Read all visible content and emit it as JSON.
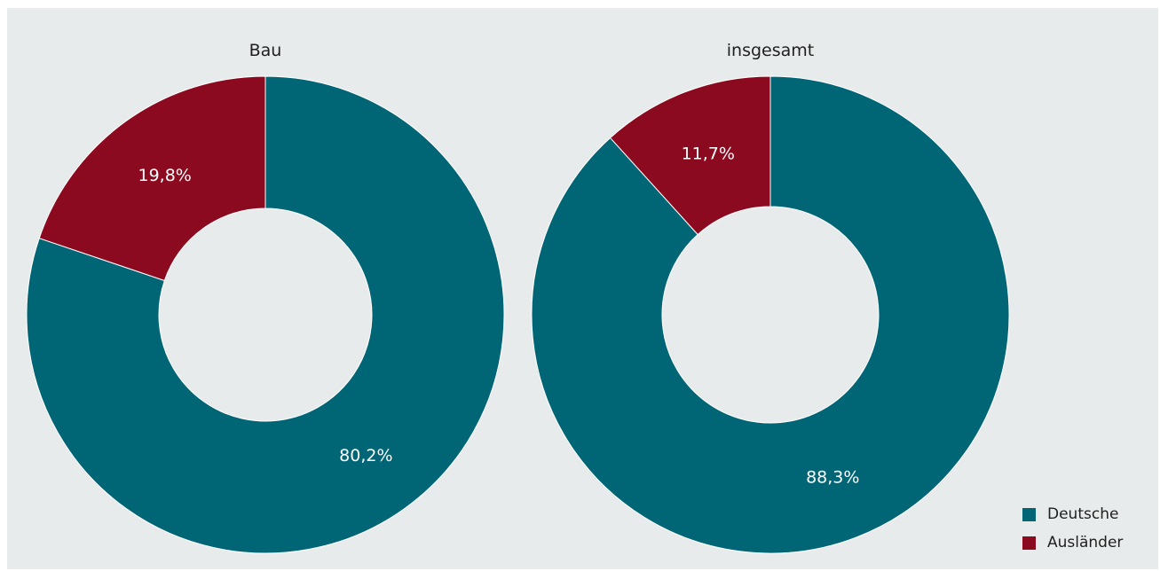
{
  "chart_data": [
    {
      "type": "pie",
      "title": "Bau",
      "slices": [
        {
          "name": "Deutsche",
          "value": 80.2,
          "label": "80,2%",
          "color": "#006575"
        },
        {
          "name": "Ausländer",
          "value": 19.8,
          "label": "19,8%",
          "color": "#8b0a1f"
        }
      ]
    },
    {
      "type": "pie",
      "title": "insgesamt",
      "slices": [
        {
          "name": "Deutsche",
          "value": 88.3,
          "label": "88,3%",
          "color": "#006575"
        },
        {
          "name": "Ausländer",
          "value": 11.7,
          "label": "11,7%",
          "color": "#8b0a1f"
        }
      ]
    }
  ],
  "legend": {
    "placement": "bottom-right",
    "items": [
      {
        "label": "Deutsche",
        "color": "#006575"
      },
      {
        "label": "Ausländer",
        "color": "#8b0a1f"
      }
    ]
  },
  "colors": {
    "background": "#e8ebec",
    "deutsche": "#006575",
    "auslaender": "#8b0a1f"
  }
}
